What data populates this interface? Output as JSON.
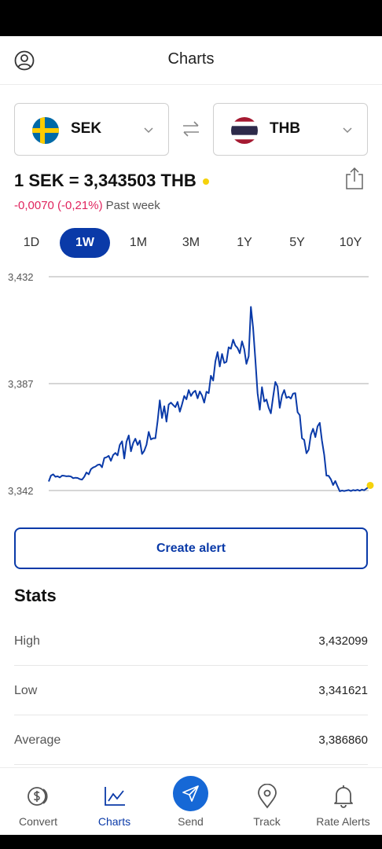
{
  "header": {
    "title": "Charts"
  },
  "converter": {
    "from": {
      "code": "SEK",
      "flag": "sweden-flag"
    },
    "to": {
      "code": "THB",
      "flag": "thailand-flag"
    }
  },
  "rate": {
    "text": "1 SEK = 3,343503 THB",
    "change": "-0,0070 (-0,21%)",
    "period": "Past week"
  },
  "ranges": [
    "1D",
    "1W",
    "1M",
    "3M",
    "1Y",
    "5Y",
    "10Y"
  ],
  "active_range": "1W",
  "chart_data": {
    "type": "line",
    "ytick_labels": [
      "3,432",
      "3,387",
      "3,342"
    ],
    "yticks": [
      3.432,
      3.387,
      3.342
    ],
    "ylim": [
      3.342,
      3.432
    ],
    "grid": true,
    "line_color": "#0a3aa8",
    "series": [
      {
        "values": [
          3.3458,
          3.3483,
          3.3488,
          3.3478,
          3.348,
          3.3475,
          3.3483,
          3.3482,
          3.348,
          3.3481,
          3.3479,
          3.3472,
          3.3474,
          3.3473,
          3.3468,
          3.3466,
          3.3478,
          3.3496,
          3.3488,
          3.351,
          3.3517,
          3.3521,
          3.3528,
          3.353,
          3.3518,
          3.3557,
          3.356,
          3.3566,
          3.3545,
          3.357,
          3.3578,
          3.3568,
          3.3612,
          3.3627,
          3.3555,
          3.3625,
          3.3652,
          3.3585,
          3.362,
          3.3638,
          3.3612,
          3.363,
          3.3574,
          3.3587,
          3.3613,
          3.3667,
          3.3635,
          3.364,
          3.364,
          3.3712,
          3.38,
          3.3725,
          3.3775,
          3.371,
          3.3782,
          3.379,
          3.378,
          3.3771,
          3.3793,
          3.3752,
          3.3783,
          3.3818,
          3.3804,
          3.3843,
          3.3818,
          3.3833,
          3.384,
          3.3808,
          3.3837,
          3.382,
          3.379,
          3.3836,
          3.383,
          3.3903,
          3.3883,
          3.3963,
          3.4003,
          3.3942,
          3.3995,
          3.3957,
          3.3962,
          3.4023,
          3.4017,
          3.4055,
          3.403,
          3.402,
          3.3998,
          3.4048,
          3.4016,
          3.3953,
          3.3985,
          3.4193,
          3.4105,
          3.397,
          3.383,
          3.376,
          3.3855,
          3.3795,
          3.3803,
          3.3768,
          3.3745,
          3.3815,
          3.3877,
          3.3858,
          3.3768,
          3.382,
          3.3843,
          3.381,
          3.3815,
          3.3807,
          3.3828,
          3.383,
          3.375,
          3.3737,
          3.364,
          3.3633,
          3.3577,
          3.3592,
          3.3655,
          3.368,
          3.3645,
          3.369,
          3.3705,
          3.363,
          3.357,
          3.3483,
          3.3482,
          3.3467,
          3.3443,
          3.346,
          3.3438,
          3.3417,
          3.342,
          3.3418,
          3.342,
          3.3422,
          3.3418,
          3.3422,
          3.342,
          3.3423,
          3.3419,
          3.3424,
          3.3421,
          3.3428,
          3.3435
        ]
      }
    ]
  },
  "create_alert_label": "Create alert",
  "stats": {
    "title": "Stats",
    "rows": [
      {
        "label": "High",
        "value": "3,432099"
      },
      {
        "label": "Low",
        "value": "3,341621"
      },
      {
        "label": "Average",
        "value": "3,386860"
      }
    ]
  },
  "tabs": [
    {
      "label": "Convert",
      "icon": "convert-icon"
    },
    {
      "label": "Charts",
      "icon": "charts-icon"
    },
    {
      "label": "Send",
      "icon": "send-icon"
    },
    {
      "label": "Track",
      "icon": "track-icon"
    },
    {
      "label": "Rate Alerts",
      "icon": "bell-icon"
    }
  ],
  "active_tab": "Charts",
  "colors": {
    "accent": "#0a3aa8",
    "negative": "#e0245e",
    "live": "#f5d20c",
    "send": "#1668d6"
  }
}
